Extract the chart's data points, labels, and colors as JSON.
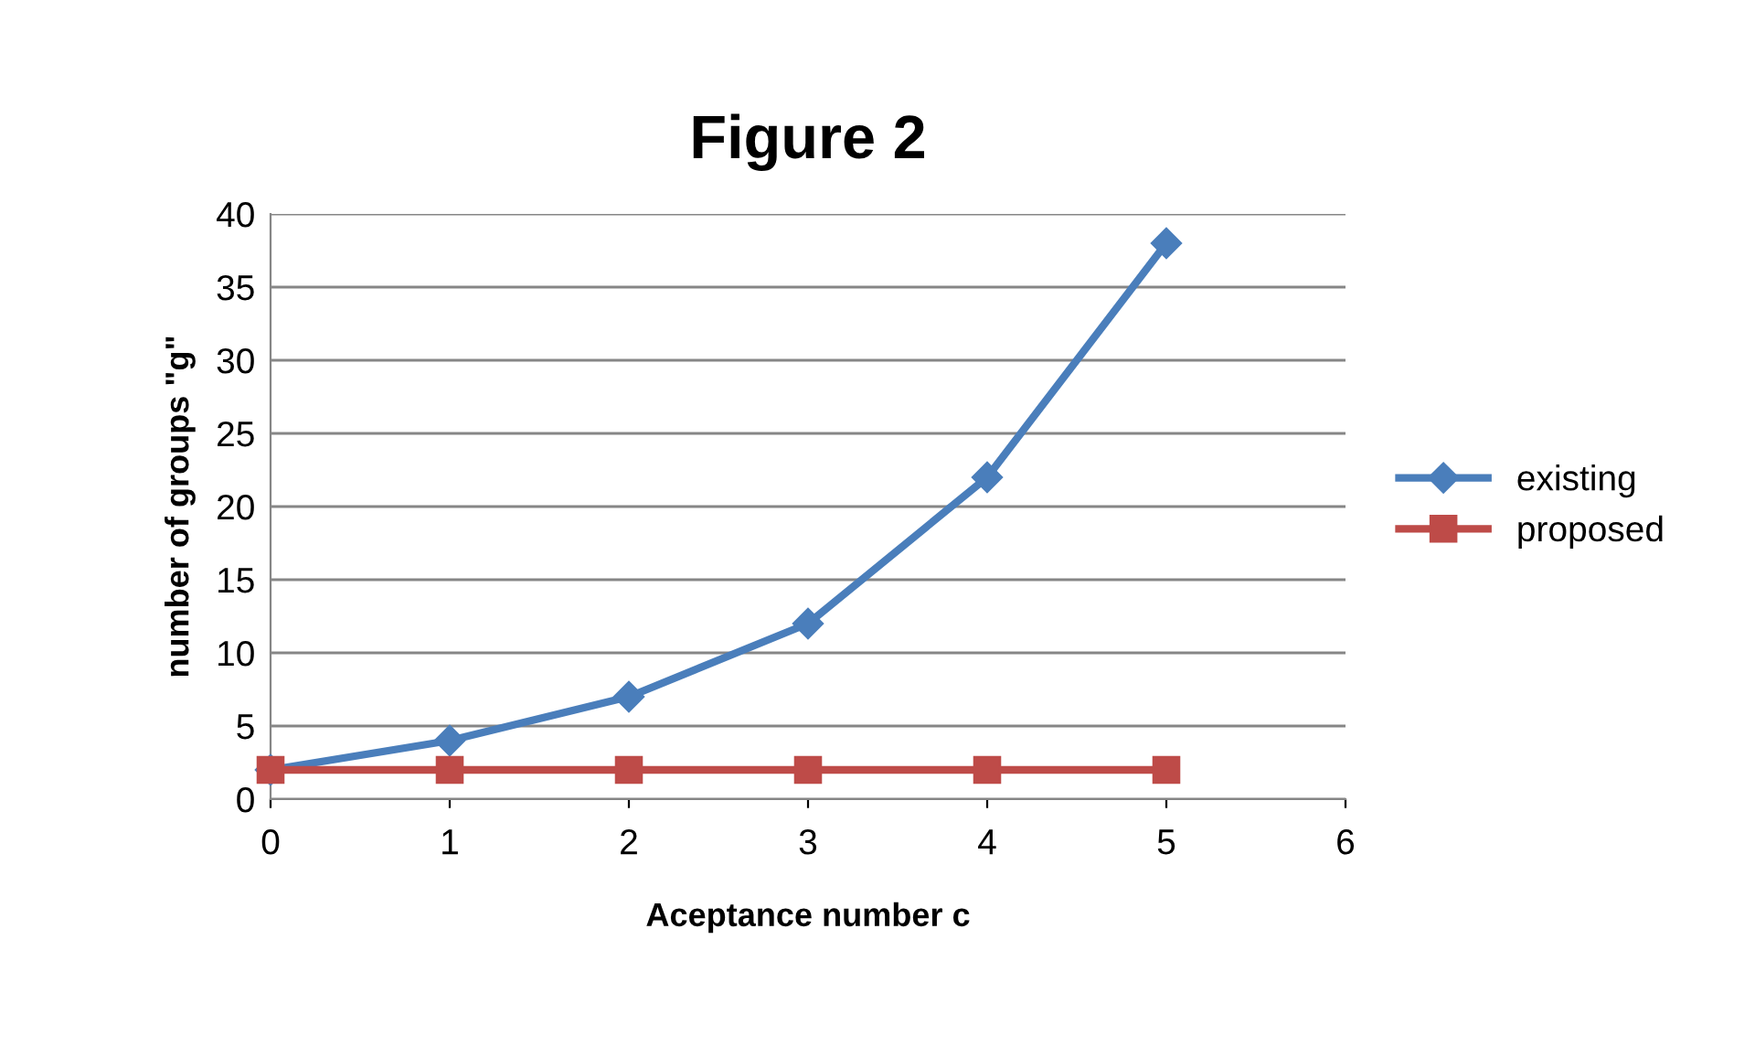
{
  "chart_data": {
    "type": "line",
    "title": "Figure 2",
    "xlabel": "Aceptance number c",
    "ylabel": "number of groups \"g\"",
    "x": [
      0,
      1,
      2,
      3,
      4,
      5
    ],
    "series": [
      {
        "name": "existing",
        "color": "#4a7ebb",
        "marker": "diamond",
        "values": [
          2,
          4,
          7,
          12,
          22,
          38
        ]
      },
      {
        "name": "proposed",
        "color": "#be4b48",
        "marker": "square",
        "values": [
          2,
          2,
          2,
          2,
          2,
          2
        ]
      }
    ],
    "xlim": [
      0,
      6
    ],
    "xticks": [
      0,
      1,
      2,
      3,
      4,
      5,
      6
    ],
    "ylim": [
      0,
      40
    ],
    "yticks": [
      0,
      5,
      10,
      15,
      20,
      25,
      30,
      35,
      40
    ],
    "grid": "y",
    "legend": "right",
    "line_style": "solid"
  }
}
